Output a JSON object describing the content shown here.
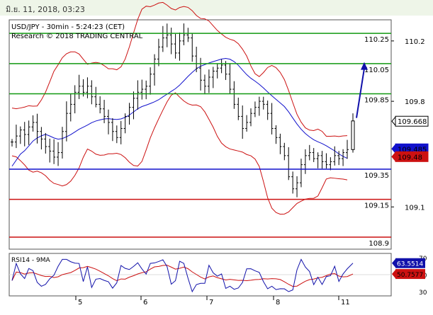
{
  "header": {
    "timestamp": "มิ.ย. 11, 2018, 03:23"
  },
  "chart_data": {
    "type": "candlestick",
    "instrument": "USD/JPY - 30min - 5:24:23 (CET)",
    "research": "Research © 2018 TRADING CENTRAL",
    "x_labels": [
      "5",
      "6",
      "7",
      "8",
      "11"
    ],
    "y_ticks": [
      "110.2",
      "109.8",
      "109.1"
    ],
    "y_range": [
      108.82,
      110.34
    ],
    "levels": [
      {
        "label": "110.25",
        "value": 110.25,
        "kind": "resistance",
        "color": "#119911"
      },
      {
        "label": "110.05",
        "value": 110.05,
        "kind": "resistance",
        "color": "#119911"
      },
      {
        "label": "109.85",
        "value": 109.85,
        "kind": "resistance",
        "color": "#119911"
      },
      {
        "label": "109.35",
        "value": 109.35,
        "kind": "support",
        "color": "#1111cc"
      },
      {
        "label": "109.15",
        "value": 109.15,
        "kind": "support",
        "color": "#cc1111"
      },
      {
        "label": "108.9",
        "value": 108.9,
        "kind": "support",
        "color": "#cc1111"
      }
    ],
    "markers": [
      {
        "label": "109.668",
        "value": 109.668,
        "bg": "#ffffff",
        "fg": "#000000",
        "border": "#000000"
      },
      {
        "label": "109.485",
        "value": 109.485,
        "bg": "#1111cc",
        "fg": "#ffffff",
        "border": "#1111cc"
      },
      {
        "label": "109.48",
        "value": 109.48,
        "bg": "#cc1111",
        "fg": "#000000",
        "border": "#cc1111"
      }
    ],
    "arrow": {
      "from": 109.69,
      "to": 110.06,
      "color": "#1111aa"
    },
    "price_path": [
      109.53,
      109.57,
      109.61,
      109.58,
      109.63,
      109.66,
      109.6,
      109.55,
      109.5,
      109.47,
      109.43,
      109.46,
      109.6,
      109.72,
      109.78,
      109.86,
      109.9,
      109.86,
      109.9,
      109.83,
      109.78,
      109.75,
      109.7,
      109.66,
      109.6,
      109.56,
      109.62,
      109.7,
      109.76,
      109.82,
      109.86,
      109.88,
      109.9,
      109.98,
      110.08,
      110.16,
      110.22,
      110.24,
      110.18,
      110.12,
      110.2,
      110.24,
      110.22,
      110.1,
      110.02,
      109.94,
      109.9,
      109.96,
      110.0,
      110.02,
      110.04,
      109.98,
      109.88,
      109.78,
      109.7,
      109.62,
      109.66,
      109.72,
      109.76,
      109.8,
      109.78,
      109.72,
      109.62,
      109.56,
      109.5,
      109.44,
      109.3,
      109.22,
      109.26,
      109.38,
      109.44,
      109.46,
      109.42,
      109.44,
      109.4,
      109.38,
      109.4,
      109.44,
      109.42,
      109.46,
      109.48
    ],
    "last_bar": {
      "open": 109.48,
      "high": 109.72,
      "low": 109.46,
      "close": 109.67
    },
    "rsi": {
      "label": "RSI14 - 9MA",
      "y_ticks": [
        "70",
        "50",
        "30"
      ],
      "range": [
        25,
        75
      ],
      "value_label": "63.5514",
      "ma_label": "50.7577",
      "value": 63.5514,
      "ma": 50.7577
    }
  }
}
